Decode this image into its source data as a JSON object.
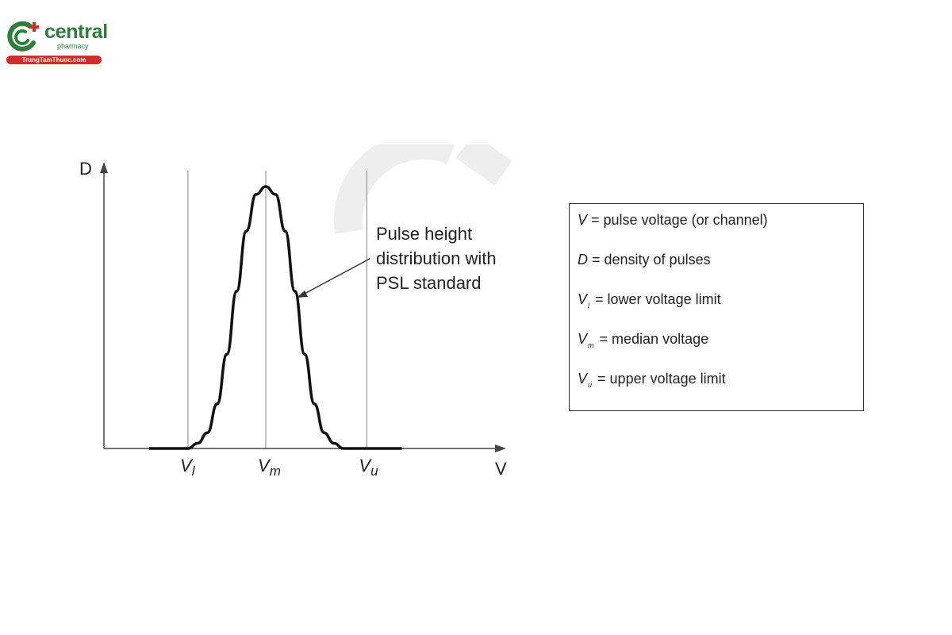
{
  "logo": {
    "name": "central",
    "subtitle": "pharmacy",
    "site": "TrungTamThuoc.com"
  },
  "colors": {
    "logo_green": "#2e7d3a",
    "logo_red": "#d62b2b",
    "curve": "#111111",
    "guide_lines": "#999999",
    "watermark": "#eeeeee"
  },
  "chart_data": {
    "type": "line",
    "ylabel": "D",
    "xlabel": "V",
    "markers": [
      {
        "symbol": "V",
        "subscript": "l"
      },
      {
        "symbol": "V",
        "subscript": "m"
      },
      {
        "symbol": "V",
        "subscript": "u"
      }
    ],
    "annotation": [
      "Pulse height",
      "distribution with",
      "PSL standard"
    ],
    "x": [
      -3.0,
      -2.5,
      -2.0,
      -1.75,
      -1.5,
      -1.25,
      -1.0,
      -0.75,
      -0.5,
      -0.25,
      0.0,
      0.25,
      0.5,
      0.75,
      1.0,
      1.25,
      1.5,
      1.75,
      2.0,
      2.5,
      3.0,
      3.5
    ],
    "y": [
      0.0,
      0.0,
      0.0,
      0.02,
      0.06,
      0.17,
      0.36,
      0.6,
      0.83,
      0.97,
      1.0,
      0.97,
      0.83,
      0.6,
      0.36,
      0.17,
      0.06,
      0.02,
      0.0,
      0.0,
      0.0,
      0.0
    ],
    "marker_x": [
      -2.0,
      0.0,
      2.6
    ],
    "grid": false
  },
  "legend": {
    "rows": [
      {
        "symbol": "V",
        "subscript": "",
        "text": " = pulse voltage (or channel)"
      },
      {
        "symbol": "D",
        "subscript": "",
        "text": " = density of pulses"
      },
      {
        "symbol": "V",
        "subscript": "l",
        "text": " = lower voltage limit"
      },
      {
        "symbol": "V",
        "subscript": "m",
        "text": " = median voltage"
      },
      {
        "symbol": "V",
        "subscript": "u",
        "text": " = upper voltage limit"
      }
    ]
  }
}
